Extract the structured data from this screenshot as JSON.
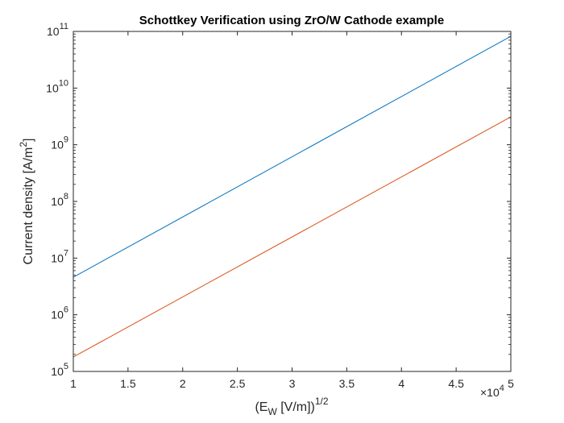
{
  "chart_data": {
    "type": "line",
    "title": "Schottkey Verification using ZrO/W Cathode example",
    "xlabel": {
      "pre": "(E",
      "sub": "W",
      "mid": " [V/m])",
      "sup": "1/2"
    },
    "ylabel": {
      "pre": "Current density [A/m",
      "sup": "2",
      "post": "]"
    },
    "x_multiplier": {
      "prefix": "×10",
      "exponent": "4"
    },
    "x_scale": "linear",
    "y_scale": "log",
    "xlim": [
      10000,
      50000
    ],
    "ylim": [
      100000,
      100000000000
    ],
    "x_ticks": [
      {
        "value": 10000,
        "label": "1"
      },
      {
        "value": 15000,
        "label": "1.5"
      },
      {
        "value": 20000,
        "label": "2"
      },
      {
        "value": 25000,
        "label": "2.5"
      },
      {
        "value": 30000,
        "label": "3"
      },
      {
        "value": 35000,
        "label": "3.5"
      },
      {
        "value": 40000,
        "label": "4"
      },
      {
        "value": 45000,
        "label": "4.5"
      },
      {
        "value": 50000,
        "label": "5"
      }
    ],
    "y_ticks": [
      {
        "value": 100000,
        "base": "10",
        "exp": "5"
      },
      {
        "value": 1000000,
        "base": "10",
        "exp": "6"
      },
      {
        "value": 10000000,
        "base": "10",
        "exp": "7"
      },
      {
        "value": 100000000,
        "base": "10",
        "exp": "8"
      },
      {
        "value": 1000000000,
        "base": "10",
        "exp": "9"
      },
      {
        "value": 10000000000,
        "base": "10",
        "exp": "10"
      },
      {
        "value": 100000000000,
        "base": "10",
        "exp": "11"
      }
    ],
    "grid": false,
    "series": [
      {
        "color": "#0072BD",
        "x": [
          10000,
          50000
        ],
        "y": [
          4600000,
          82000000000
        ]
      },
      {
        "color": "#D95319",
        "x": [
          10000,
          50000
        ],
        "y": [
          180000,
          3100000000
        ]
      }
    ]
  }
}
